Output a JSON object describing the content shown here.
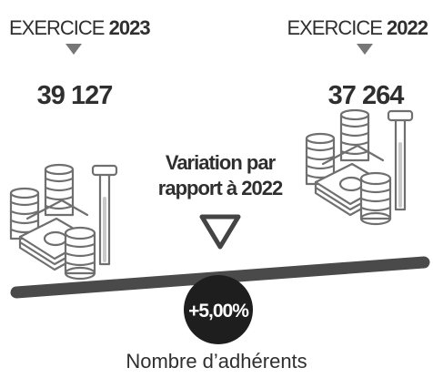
{
  "left": {
    "label": "EXERCICE",
    "year": "2023",
    "value": "39 127"
  },
  "right": {
    "label": "EXERCICE",
    "year": "2022",
    "value": "37 264"
  },
  "variation": {
    "lines": [
      "Variation par",
      "rapport à 2022"
    ],
    "badge": "+5,00%"
  },
  "footer": "Nombre d’adhérents"
}
